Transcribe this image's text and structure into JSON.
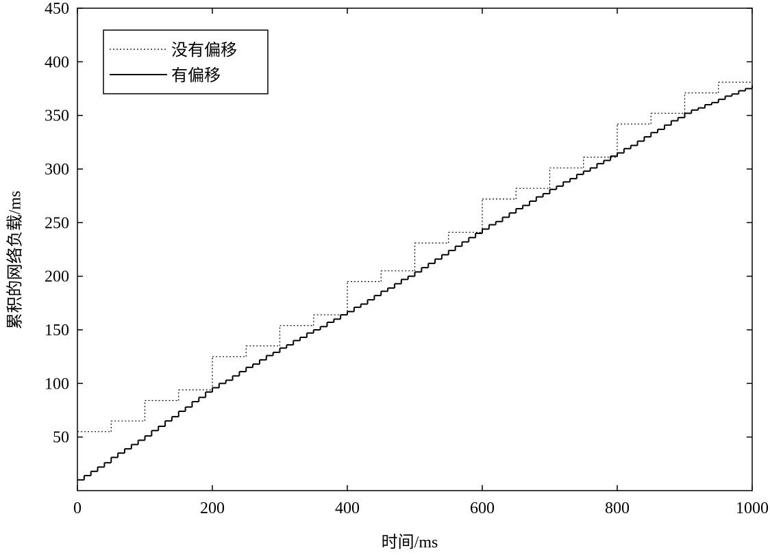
{
  "chart_data": {
    "type": "step",
    "xlabel": "时间/ms",
    "ylabel": "累积的网络负载/ms",
    "xlim": [
      0,
      1000
    ],
    "ylim": [
      0,
      450
    ],
    "xticks": [
      0,
      200,
      400,
      600,
      800,
      1000
    ],
    "yticks": [
      50,
      100,
      150,
      200,
      250,
      300,
      350,
      400,
      450
    ],
    "legend": "upper left",
    "series": [
      {
        "name": "没有偏移",
        "color": "#000000",
        "style": "dotted",
        "x": [
          0,
          50,
          100,
          150,
          200,
          250,
          300,
          350,
          400,
          450,
          500,
          550,
          600,
          650,
          700,
          750,
          800,
          850,
          900,
          950,
          1000
        ],
        "values": [
          55,
          65,
          84,
          94,
          125,
          135,
          154,
          164,
          195,
          205,
          231,
          241,
          272,
          282,
          301,
          311,
          342,
          352,
          371,
          381,
          381
        ]
      },
      {
        "name": "有偏移",
        "color": "#000000",
        "style": "solid",
        "x": [
          0,
          10,
          20,
          30,
          40,
          50,
          60,
          70,
          80,
          90,
          100,
          110,
          120,
          130,
          140,
          150,
          160,
          170,
          180,
          190,
          200,
          210,
          220,
          230,
          240,
          250,
          260,
          270,
          280,
          290,
          300,
          310,
          320,
          330,
          340,
          350,
          360,
          370,
          380,
          390,
          400,
          410,
          420,
          430,
          440,
          450,
          460,
          470,
          480,
          490,
          500,
          510,
          520,
          530,
          540,
          550,
          560,
          570,
          580,
          590,
          600,
          610,
          620,
          630,
          640,
          650,
          660,
          670,
          680,
          690,
          700,
          710,
          720,
          730,
          740,
          750,
          760,
          770,
          780,
          790,
          800,
          810,
          820,
          830,
          840,
          850,
          860,
          870,
          880,
          890,
          900,
          910,
          920,
          930,
          940,
          950,
          960,
          970,
          980,
          990,
          1000
        ],
        "values": [
          10,
          14,
          18,
          22,
          26,
          31,
          35,
          39,
          43,
          47,
          51,
          56,
          60,
          65,
          69,
          74,
          78,
          83,
          87,
          92,
          96,
          100,
          103,
          107,
          111,
          115,
          118,
          122,
          126,
          129,
          133,
          136,
          140,
          143,
          147,
          150,
          153,
          157,
          160,
          164,
          167,
          171,
          174,
          178,
          182,
          186,
          189,
          193,
          197,
          200,
          204,
          208,
          212,
          216,
          220,
          224,
          228,
          232,
          236,
          240,
          244,
          248,
          251,
          255,
          259,
          263,
          266,
          270,
          274,
          277,
          281,
          284,
          288,
          291,
          295,
          298,
          301,
          305,
          308,
          312,
          315,
          319,
          322,
          326,
          330,
          334,
          337,
          341,
          345,
          348,
          352,
          355,
          357,
          360,
          362,
          365,
          368,
          370,
          373,
          375,
          378
        ]
      }
    ]
  }
}
